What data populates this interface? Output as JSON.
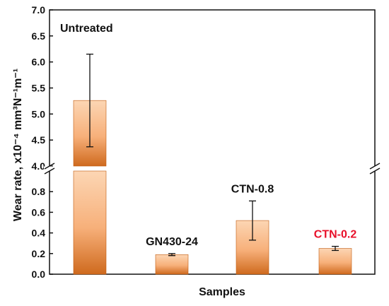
{
  "chart_data": {
    "type": "bar",
    "xlabel": "Samples",
    "ylabel": "Wear rate, x10⁻⁴ mm³N⁻¹m⁻¹",
    "y_axis_break": true,
    "lower_ylim": [
      0.0,
      1.0
    ],
    "upper_ylim": [
      4.0,
      7.0
    ],
    "lower_ticks": [
      "0.0",
      "0.2",
      "0.4",
      "0.6",
      "0.8"
    ],
    "upper_ticks": [
      "4.0",
      "4.5",
      "5.0",
      "5.5",
      "6.0",
      "6.5",
      "7.0"
    ],
    "categories": [
      "Untreated",
      "GN430-24",
      "CTN-0.8",
      "CTN-0.2"
    ],
    "values": [
      5.26,
      0.19,
      0.52,
      0.25
    ],
    "error": [
      0.89,
      0.01,
      0.19,
      0.02
    ],
    "label_colors": [
      "#111111",
      "#111111",
      "#111111",
      "#e8102a"
    ],
    "bar_gradient": [
      "#fcd6b4",
      "#f7b07a",
      "#cf6a1e"
    ],
    "grid": false,
    "legend": "none"
  }
}
